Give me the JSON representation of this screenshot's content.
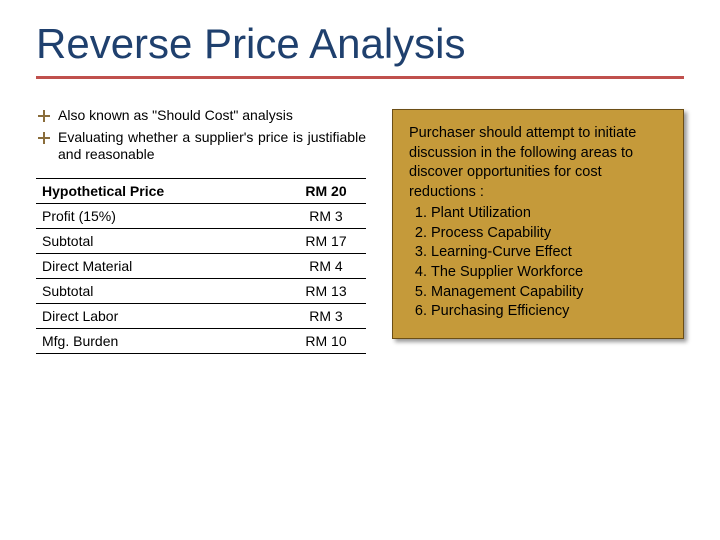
{
  "title": "Reverse Price Analysis",
  "bullets": [
    "Also known as \"Should Cost\" analysis",
    "Evaluating whether a supplier's price is justifiable and reasonable"
  ],
  "table": {
    "rows": [
      {
        "label": "Hypothetical Price",
        "value": "RM 20"
      },
      {
        "label": "Profit (15%)",
        "value": "RM 3"
      },
      {
        "label": "Subtotal",
        "value": "RM 17"
      },
      {
        "label": "Direct Material",
        "value": "RM 4"
      },
      {
        "label": "Subtotal",
        "value": "RM 13"
      },
      {
        "label": "Direct Labor",
        "value": "RM 3"
      },
      {
        "label": "Mfg. Burden",
        "value": "RM 10"
      }
    ]
  },
  "callout": {
    "intro": "Purchaser should attempt to initiate discussion in the following areas to discover opportunities for cost reductions :",
    "items": [
      "Plant Utilization",
      "Process Capability",
      "Learning-Curve Effect",
      "The Supplier Workforce",
      "Management Capability",
      "Purchasing Efficiency"
    ],
    "background_color": "#c59a3a",
    "border_color": "#6b4e16"
  },
  "colors": {
    "title_color": "#1f406e",
    "title_underline": "#c0504d",
    "bullet_marker": "#8a6d3b",
    "text": "#000000",
    "background": "#ffffff"
  }
}
